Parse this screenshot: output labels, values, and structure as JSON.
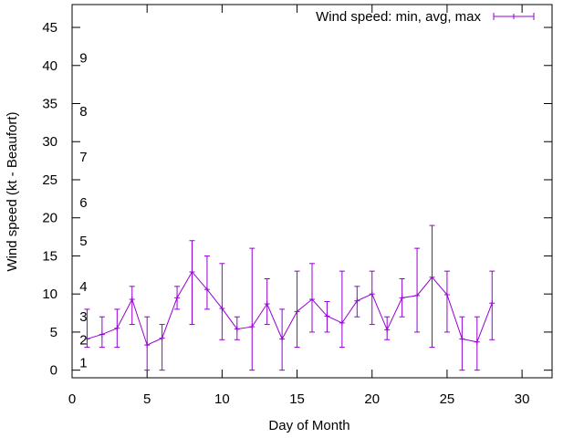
{
  "chart_data": {
    "type": "line",
    "title": "",
    "xlabel": "Day of Month",
    "ylabel": "Wind speed (kt - Beaufort)",
    "xlim": [
      0,
      32
    ],
    "ylim": [
      -1,
      48
    ],
    "xticks": [
      0,
      5,
      10,
      15,
      20,
      25,
      30
    ],
    "yticks": [
      0,
      5,
      10,
      15,
      20,
      25,
      30,
      35,
      40,
      45
    ],
    "grid": false,
    "legend_position": "top-right",
    "beaufort_labels": [
      {
        "label": "1",
        "kt": 1
      },
      {
        "label": "2",
        "kt": 4
      },
      {
        "label": "3",
        "kt": 7
      },
      {
        "label": "4",
        "kt": 11
      },
      {
        "label": "5",
        "kt": 17
      },
      {
        "label": "6",
        "kt": 22
      },
      {
        "label": "7",
        "kt": 28
      },
      {
        "label": "8",
        "kt": 34
      },
      {
        "label": "9",
        "kt": 41
      }
    ],
    "series": [
      {
        "name": "Wind speed: min, avg, max",
        "color": "#9400d3",
        "points": [
          {
            "x": 1,
            "min": 3,
            "avg": 4.1,
            "max": 8
          },
          {
            "x": 2,
            "min": 3,
            "avg": 4.7,
            "max": 7
          },
          {
            "x": 3,
            "min": 3,
            "avg": 5.5,
            "max": 8
          },
          {
            "x": 4,
            "min": 6,
            "avg": 9.3,
            "max": 11
          },
          {
            "x": 5,
            "min": 0,
            "avg": 3.3,
            "max": 7
          },
          {
            "x": 6,
            "min": 0,
            "avg": 4.2,
            "max": 6
          },
          {
            "x": 7,
            "min": 8,
            "avg": 9.5,
            "max": 11
          },
          {
            "x": 8,
            "min": 6,
            "avg": 12.9,
            "max": 17
          },
          {
            "x": 9,
            "min": 8,
            "avg": 10.6,
            "max": 15
          },
          {
            "x": 10,
            "min": 4,
            "avg": 8.1,
            "max": 14
          },
          {
            "x": 11,
            "min": 4,
            "avg": 5.4,
            "max": 7
          },
          {
            "x": 12,
            "min": 0,
            "avg": 5.7,
            "max": 16
          },
          {
            "x": 13,
            "min": 6,
            "avg": 8.7,
            "max": 12
          },
          {
            "x": 14,
            "min": 0,
            "avg": 4.1,
            "max": 8
          },
          {
            "x": 15,
            "min": 3,
            "avg": 7.7,
            "max": 13
          },
          {
            "x": 16,
            "min": 5,
            "avg": 9.3,
            "max": 14
          },
          {
            "x": 17,
            "min": 5,
            "avg": 7.1,
            "max": 9
          },
          {
            "x": 18,
            "min": 3,
            "avg": 6.2,
            "max": 13
          },
          {
            "x": 19,
            "min": 7,
            "avg": 9.1,
            "max": 11
          },
          {
            "x": 20,
            "min": 6,
            "avg": 10.0,
            "max": 13
          },
          {
            "x": 21,
            "min": 4,
            "avg": 5.3,
            "max": 7
          },
          {
            "x": 22,
            "min": 7,
            "avg": 9.5,
            "max": 12
          },
          {
            "x": 23,
            "min": 5,
            "avg": 9.8,
            "max": 16
          },
          {
            "x": 24,
            "min": 3,
            "avg": 12.2,
            "max": 19
          },
          {
            "x": 25,
            "min": 5,
            "avg": 9.9,
            "max": 13
          },
          {
            "x": 26,
            "min": 0,
            "avg": 4.1,
            "max": 7
          },
          {
            "x": 27,
            "min": 0,
            "avg": 3.7,
            "max": 7
          },
          {
            "x": 28,
            "min": 4,
            "avg": 8.8,
            "max": 13
          }
        ]
      }
    ]
  }
}
